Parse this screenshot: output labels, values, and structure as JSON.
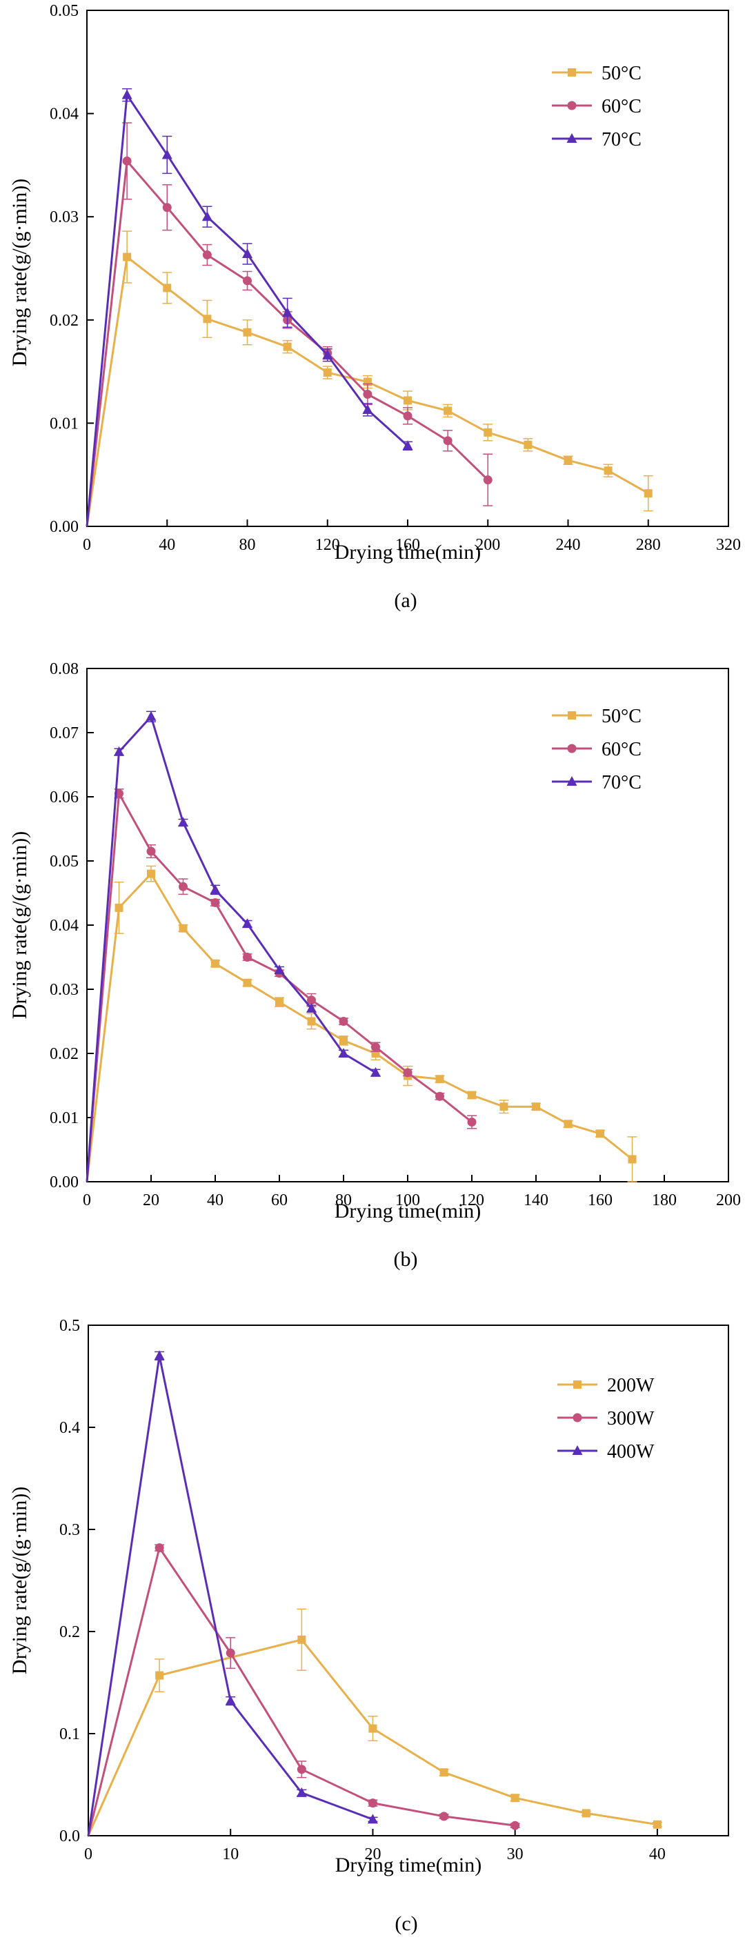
{
  "colors": {
    "c50": "#e8b04a",
    "c60": "#c2507a",
    "c70": "#5a2db8",
    "axis": "#000000"
  },
  "chart_data": [
    {
      "type": "line",
      "panel_label": "(a)",
      "xlabel": "Drying time(min)",
      "ylabel": "Drying rate(g/(g·min))",
      "xlim": [
        0,
        320
      ],
      "ylim": [
        0,
        0.05
      ],
      "xticks": [
        0,
        40,
        80,
        120,
        160,
        200,
        240,
        280,
        320
      ],
      "yticks": [
        0.0,
        0.01,
        0.02,
        0.03,
        0.04,
        0.05
      ],
      "ytick_labels": [
        "0.00",
        "0.01",
        "0.02",
        "0.03",
        "0.04",
        "0.05"
      ],
      "legend_position": "top-right",
      "series": [
        {
          "name": "50°C",
          "color_key": "c50",
          "marker": "square",
          "x": [
            0,
            20,
            40,
            60,
            80,
            100,
            120,
            140,
            160,
            180,
            200,
            220,
            240,
            260,
            280
          ],
          "y": [
            0,
            0.0261,
            0.0231,
            0.0201,
            0.0188,
            0.0174,
            0.0149,
            0.014,
            0.0122,
            0.0112,
            0.0091,
            0.0079,
            0.0064,
            0.0054,
            0.0032
          ],
          "err": [
            0,
            0.0025,
            0.0015,
            0.0018,
            0.0012,
            0.0006,
            0.0006,
            0.0006,
            0.0009,
            0.0006,
            0.0008,
            0.0006,
            0.0004,
            0.0006,
            0.0017
          ]
        },
        {
          "name": "60°C",
          "color_key": "c60",
          "marker": "circle",
          "x": [
            0,
            20,
            40,
            60,
            80,
            100,
            120,
            140,
            160,
            180,
            200
          ],
          "y": [
            0,
            0.0354,
            0.0309,
            0.0263,
            0.0238,
            0.02,
            0.0168,
            0.0128,
            0.0107,
            0.0083,
            0.0045
          ],
          "err": [
            0,
            0.0037,
            0.0022,
            0.001,
            0.0009,
            0.0008,
            0.0006,
            0.001,
            0.0008,
            0.001,
            0.0025
          ]
        },
        {
          "name": "70°C",
          "color_key": "c70",
          "marker": "triangle",
          "x": [
            0,
            20,
            40,
            60,
            80,
            100,
            120,
            140,
            160
          ],
          "y": [
            0,
            0.0418,
            0.036,
            0.03,
            0.0264,
            0.0207,
            0.0166,
            0.0113,
            0.0078
          ],
          "err": [
            0,
            0.0006,
            0.0018,
            0.001,
            0.001,
            0.0014,
            0.0006,
            0.0006,
            0.0004
          ]
        }
      ]
    },
    {
      "type": "line",
      "panel_label": "(b)",
      "xlabel": "Drying time(min)",
      "ylabel": "Drying rate(g/(g·min))",
      "xlim": [
        0,
        200
      ],
      "ylim": [
        0,
        0.08
      ],
      "xticks": [
        0,
        20,
        40,
        60,
        80,
        100,
        120,
        140,
        160,
        180,
        200
      ],
      "yticks": [
        0.0,
        0.01,
        0.02,
        0.03,
        0.04,
        0.05,
        0.06,
        0.07,
        0.08
      ],
      "ytick_labels": [
        "0.00",
        "0.01",
        "0.02",
        "0.03",
        "0.04",
        "0.05",
        "0.06",
        "0.07",
        "0.08"
      ],
      "legend_position": "top-right",
      "series": [
        {
          "name": "50°C",
          "color_key": "c50",
          "marker": "square",
          "x": [
            0,
            10,
            20,
            30,
            40,
            50,
            60,
            70,
            80,
            90,
            100,
            110,
            120,
            130,
            140,
            150,
            160,
            170
          ],
          "y": [
            0,
            0.0427,
            0.048,
            0.0395,
            0.034,
            0.031,
            0.028,
            0.025,
            0.022,
            0.02,
            0.0165,
            0.016,
            0.0135,
            0.0117,
            0.0117,
            0.009,
            0.0075,
            0.0035
          ],
          "err": [
            0,
            0.004,
            0.0012,
            0.0005,
            0.0005,
            0.0005,
            0.0007,
            0.0012,
            0.0007,
            0.001,
            0.0015,
            0.0005,
            0.0005,
            0.001,
            0.0005,
            0.0005,
            0.0005,
            0.0035
          ]
        },
        {
          "name": "60°C",
          "color_key": "c60",
          "marker": "circle",
          "x": [
            0,
            10,
            20,
            30,
            40,
            50,
            60,
            70,
            80,
            90,
            100,
            110,
            120
          ],
          "y": [
            0,
            0.0605,
            0.0515,
            0.046,
            0.0435,
            0.035,
            0.0325,
            0.0283,
            0.025,
            0.021,
            0.017,
            0.0133,
            0.0093
          ],
          "err": [
            0,
            0.0007,
            0.001,
            0.0012,
            0.0005,
            0.0005,
            0.0005,
            0.001,
            0.0005,
            0.0007,
            0.0005,
            0.0005,
            0.001
          ]
        },
        {
          "name": "70°C",
          "color_key": "c70",
          "marker": "triangle",
          "x": [
            0,
            10,
            20,
            30,
            40,
            50,
            60,
            70,
            80,
            90
          ],
          "y": [
            0,
            0.067,
            0.0725,
            0.056,
            0.0455,
            0.0402,
            0.033,
            0.027,
            0.02,
            0.017
          ],
          "err": [
            0,
            0.0005,
            0.0008,
            0.0005,
            0.0007,
            0.0005,
            0.0005,
            0.0005,
            0.0005,
            0.0005
          ]
        }
      ]
    },
    {
      "type": "line",
      "panel_label": "(c)",
      "xlabel": "Drying time(min)",
      "ylabel": "Drying rate(g/(g·min))",
      "xlim": [
        0,
        45
      ],
      "ylim": [
        0,
        0.5
      ],
      "xticks": [
        0,
        10,
        20,
        30,
        40
      ],
      "yticks": [
        0.0,
        0.1,
        0.2,
        0.3,
        0.4,
        0.5
      ],
      "ytick_labels": [
        "0.0",
        "0.1",
        "0.2",
        "0.3",
        "0.4",
        "0.5"
      ],
      "legend_position": "top-right",
      "series": [
        {
          "name": "200W",
          "color_key": "c50",
          "marker": "square",
          "x": [
            0,
            5,
            15,
            20,
            25,
            30,
            35,
            40
          ],
          "y": [
            0,
            0.157,
            0.192,
            0.105,
            0.062,
            0.037,
            0.022,
            0.011
          ],
          "err": [
            0,
            0.016,
            0.03,
            0.012,
            0.003,
            0.003,
            0.002,
            0.002
          ]
        },
        {
          "name": "300W",
          "color_key": "c60",
          "marker": "circle",
          "x": [
            0,
            5,
            10,
            15,
            20,
            25,
            30
          ],
          "y": [
            0,
            0.282,
            0.179,
            0.065,
            0.032,
            0.019,
            0.01
          ],
          "err": [
            0,
            0.003,
            0.015,
            0.008,
            0.003,
            0.002,
            0.002
          ]
        },
        {
          "name": "400W",
          "color_key": "c70",
          "marker": "triangle",
          "x": [
            0,
            5,
            10,
            15,
            20
          ],
          "y": [
            0,
            0.47,
            0.132,
            0.042,
            0.016
          ],
          "err": [
            0,
            0.004,
            0.004,
            0.003,
            0.002
          ]
        }
      ]
    }
  ]
}
